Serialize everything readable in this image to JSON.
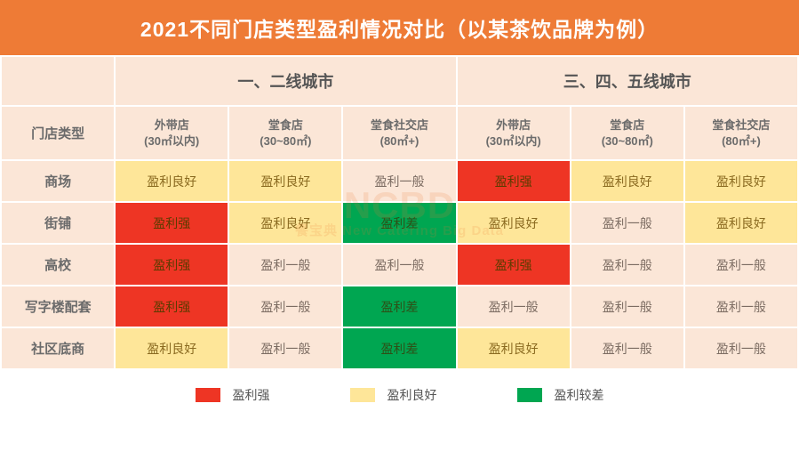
{
  "title": "2021不同门店类型盈利情况对比（以某茶饮品牌为例）",
  "colors": {
    "title_bg": "#ee7b36",
    "cell_bg_default": "#fbe6d7",
    "strong": "#ee3524",
    "good": "#fee699",
    "poor": "#00a651",
    "text": "#6b6b6b"
  },
  "group_headers": [
    "一、二线城市",
    "三、四、五线城市"
  ],
  "row0_label": "门店类型",
  "sub_headers": [
    {
      "l1": "外带店",
      "l2": "(30㎡以内)"
    },
    {
      "l1": "堂食店",
      "l2": "(30~80㎡)"
    },
    {
      "l1": "堂食社交店",
      "l2": "(80㎡+)"
    },
    {
      "l1": "外带店",
      "l2": "(30㎡以内)"
    },
    {
      "l1": "堂食店",
      "l2": "(30~80㎡)"
    },
    {
      "l1": "堂食社交店",
      "l2": "(80㎡+)"
    }
  ],
  "levels": {
    "strong": "盈利强",
    "good": "盈利良好",
    "avg": "盈利一般",
    "poor": "盈利差"
  },
  "rows": [
    {
      "label": "商场",
      "cells": [
        "good",
        "good",
        "avg",
        "strong",
        "good",
        "good"
      ]
    },
    {
      "label": "街铺",
      "cells": [
        "strong",
        "good",
        "poor",
        "good",
        "avg",
        "good"
      ]
    },
    {
      "label": "高校",
      "cells": [
        "strong",
        "avg",
        "avg",
        "strong",
        "avg",
        "avg"
      ]
    },
    {
      "label": "写字楼配套",
      "cells": [
        "strong",
        "avg",
        "poor",
        "avg",
        "avg",
        "avg"
      ]
    },
    {
      "label": "社区底商",
      "cells": [
        "good",
        "avg",
        "poor",
        "good",
        "avg",
        "avg"
      ]
    }
  ],
  "legend": [
    {
      "key": "strong",
      "label": "盈利强"
    },
    {
      "key": "good",
      "label": "盈利良好"
    },
    {
      "key": "poor",
      "label": "盈利较差"
    }
  ],
  "watermark": {
    "big": "NCBD",
    "small": "餐宝典 New Catering Big Data"
  }
}
